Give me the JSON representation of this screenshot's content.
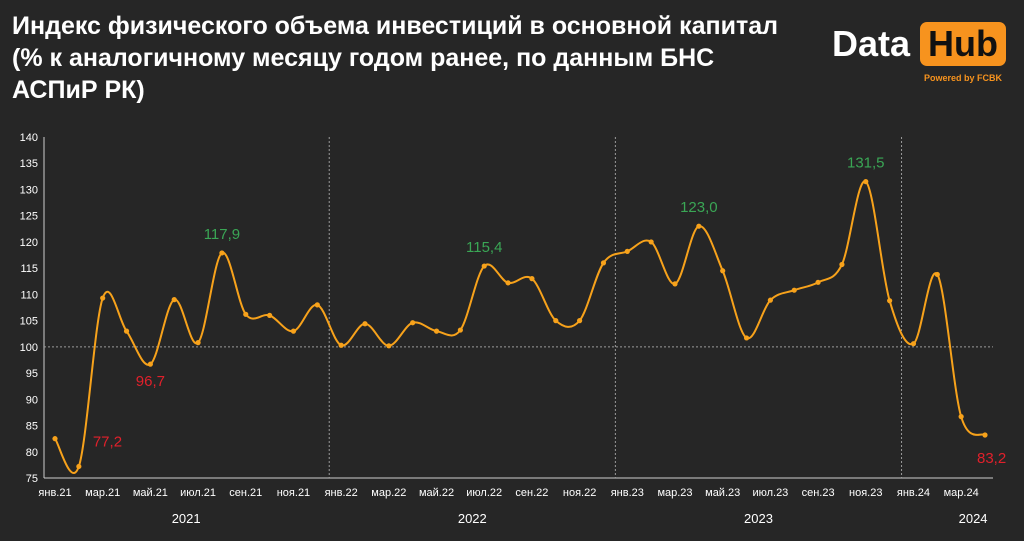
{
  "header": {
    "title_lines": [
      "Индекс физического объема инвестиций в основной капитал",
      "(% к аналогичному месяцу годом ранее, по данным БНС",
      "АСПиР РК)"
    ]
  },
  "logo": {
    "data_text": "Data",
    "hub_text": "Hub",
    "powered_text": "Powered by FCBK"
  },
  "colors": {
    "background": "#262626",
    "line": "#f7a21b",
    "positive": "#3aa655",
    "negative": "#e0202b",
    "grid": "#9a9a9a"
  },
  "chart_data": {
    "type": "line",
    "title": "Индекс физического объема инвестиций в основной капитал (% к аналогичному месяцу годом ранее, по данным БНС АСПиР РК)",
    "x_months": [
      "2021-01",
      "2021-02",
      "2021-03",
      "2021-04",
      "2021-05",
      "2021-06",
      "2021-07",
      "2021-08",
      "2021-09",
      "2021-10",
      "2021-11",
      "2021-12",
      "2022-01",
      "2022-02",
      "2022-03",
      "2022-04",
      "2022-05",
      "2022-06",
      "2022-07",
      "2022-08",
      "2022-09",
      "2022-10",
      "2022-11",
      "2022-12",
      "2023-01",
      "2023-02",
      "2023-03",
      "2023-04",
      "2023-05",
      "2023-06",
      "2023-07",
      "2023-08",
      "2023-09",
      "2023-10",
      "2023-11",
      "2023-12",
      "2024-01",
      "2024-02",
      "2024-03",
      "2024-04"
    ],
    "values": [
      82.5,
      77.2,
      109.3,
      103.0,
      96.7,
      109.0,
      100.8,
      117.9,
      106.2,
      106.0,
      103.0,
      108.0,
      100.3,
      104.4,
      100.2,
      104.6,
      103.0,
      103.2,
      115.4,
      112.2,
      113.0,
      105.0,
      105.0,
      116.0,
      118.2,
      120.0,
      112.0,
      123.0,
      114.5,
      101.7,
      108.9,
      110.8,
      112.3,
      115.7,
      131.5,
      108.8,
      100.6,
      113.8,
      86.7,
      83.2
    ],
    "x_tick_labels": [
      "янв.21",
      "мар.21",
      "май.21",
      "июл.21",
      "сен.21",
      "ноя.21",
      "янв.22",
      "мар.22",
      "май.22",
      "июл.22",
      "сен.22",
      "ноя.22",
      "янв.23",
      "мар.23",
      "май.23",
      "июл.23",
      "сен.23",
      "ноя.23",
      "янв.24",
      "мар.24"
    ],
    "year_labels": [
      {
        "label": "2021",
        "center_month": 5.5
      },
      {
        "label": "2022",
        "center_month": 17.5
      },
      {
        "label": "2023",
        "center_month": 29.5
      },
      {
        "label": "2024",
        "center_month": 38.5
      }
    ],
    "year_separators_month": [
      12,
      24,
      36
    ],
    "ylim": [
      75,
      140
    ],
    "y_ticks": [
      75,
      80,
      85,
      90,
      95,
      100,
      105,
      110,
      115,
      120,
      125,
      130,
      135,
      140
    ],
    "reference_line": 100,
    "annotations": [
      {
        "month": 1,
        "text": "77,2",
        "kind": "negative",
        "placement": "right"
      },
      {
        "month": 4,
        "text": "96,7",
        "kind": "negative",
        "placement": "below"
      },
      {
        "month": 7,
        "text": "117,9",
        "kind": "positive",
        "placement": "above"
      },
      {
        "month": 18,
        "text": "115,4",
        "kind": "positive",
        "placement": "above"
      },
      {
        "month": 27,
        "text": "123,0",
        "kind": "positive",
        "placement": "above"
      },
      {
        "month": 34,
        "text": "131,5",
        "kind": "positive",
        "placement": "above"
      },
      {
        "month": 39,
        "text": "83,2",
        "kind": "negative",
        "placement": "below"
      }
    ],
    "grid": false,
    "legend": "none"
  }
}
